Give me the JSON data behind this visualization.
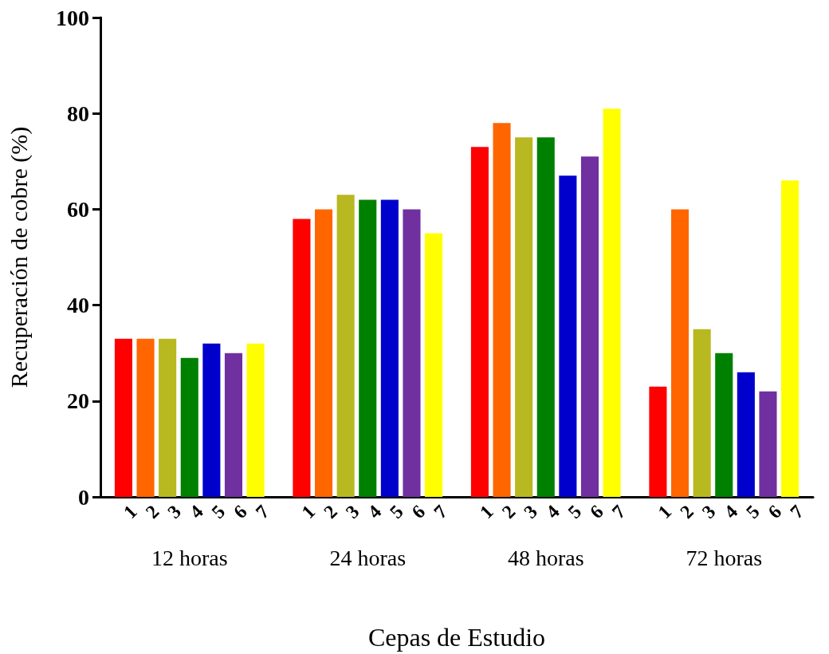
{
  "chart_data": {
    "type": "bar",
    "xlabel": "Cepas de Estudio",
    "ylabel": "Recuperación de cobre (%)",
    "categories": [
      "12 horas",
      "24 horas",
      "48 horas",
      "72 horas"
    ],
    "series": [
      {
        "name": "1",
        "color": "#ff0000",
        "values": [
          33,
          58,
          73,
          23
        ]
      },
      {
        "name": "2",
        "color": "#ff6600",
        "values": [
          33,
          60,
          78,
          60
        ]
      },
      {
        "name": "3",
        "color": "#b8b820",
        "values": [
          33,
          63,
          75,
          35
        ]
      },
      {
        "name": "4",
        "color": "#008000",
        "values": [
          29,
          62,
          75,
          30
        ]
      },
      {
        "name": "5",
        "color": "#0000cc",
        "values": [
          32,
          62,
          67,
          26
        ]
      },
      {
        "name": "6",
        "color": "#7030a0",
        "values": [
          30,
          60,
          71,
          22
        ]
      },
      {
        "name": "7",
        "color": "#ffff00",
        "values": [
          32,
          55,
          81,
          66
        ]
      }
    ],
    "ylim": [
      0,
      100
    ],
    "yticks": [
      0,
      20,
      40,
      60,
      80,
      100
    ],
    "grid": false,
    "legend": false
  }
}
